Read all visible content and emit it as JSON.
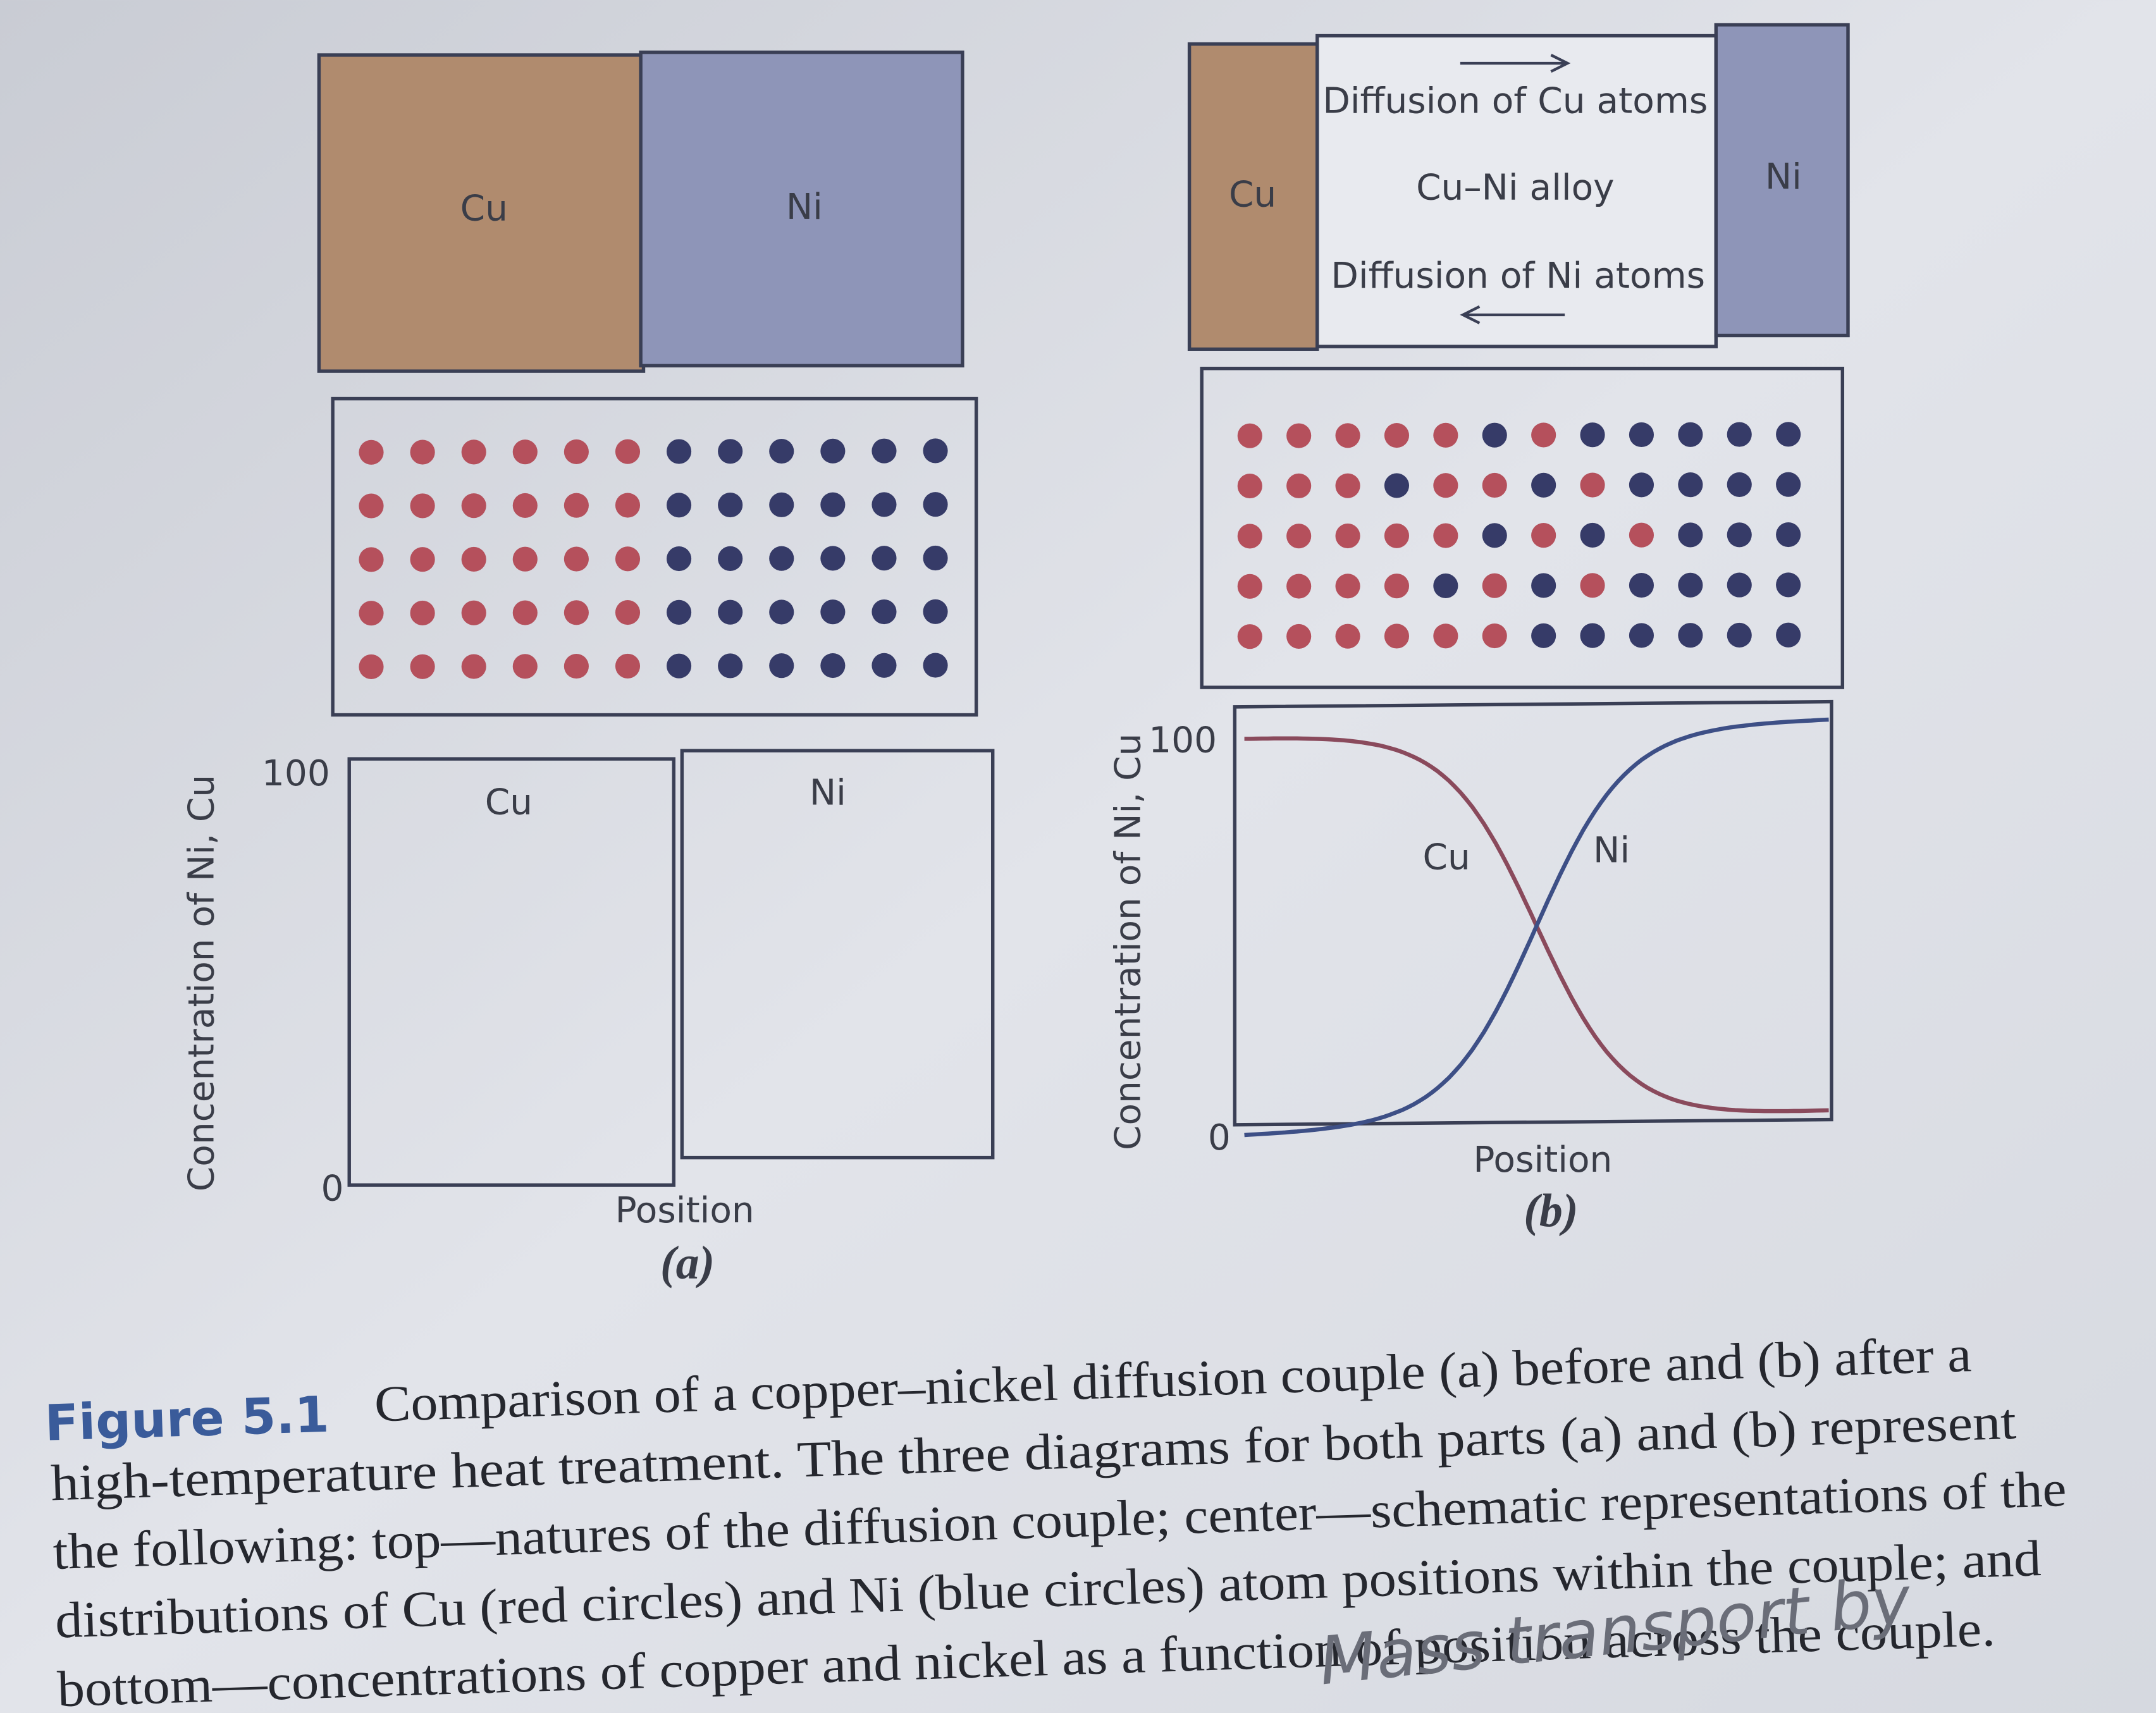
{
  "panel_a": {
    "label": "(a)",
    "top": {
      "cu_label": "Cu",
      "ni_label": "Ni"
    },
    "plot": {
      "cu_label": "Cu",
      "ni_label": "Ni",
      "y_max": "100",
      "y_min": "0",
      "x_label": "Position",
      "y_label": "Concentration of Ni, Cu"
    }
  },
  "panel_b": {
    "label": "(b)",
    "top": {
      "cu_label": "Cu",
      "ni_label": "Ni",
      "cu_diffusion": "Diffusion of Cu atoms",
      "alloy_label": "Cu–Ni alloy",
      "ni_diffusion": "Diffusion of Ni atoms"
    },
    "plot": {
      "cu_label": "Cu",
      "ni_label": "Ni",
      "y_max": "100",
      "y_min": "0",
      "x_label": "Position",
      "y_label": "Concentration of Ni, Cu"
    }
  },
  "caption": {
    "label": "Figure 5.1",
    "lines": [
      "Comparison of a copper–nickel diffusion couple (a) before and (b) after a",
      "high-temperature heat treatment. The three diagrams for both parts (a) and (b) represent",
      "the following: top—natures of the diffusion couple; center—schematic representations of the",
      "distributions of Cu (red circles) and Ni (blue circles) atom positions within the couple; and",
      "bottom—concentrations of copper and nickel as a function of position across the couple."
    ]
  },
  "handwriting": "Mass transport by"
}
